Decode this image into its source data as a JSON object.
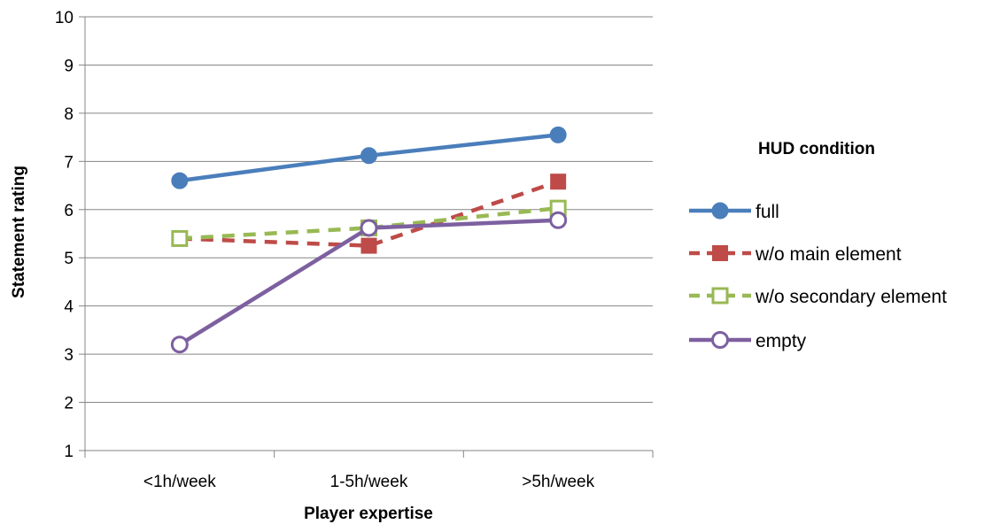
{
  "chart_data": {
    "type": "line",
    "xlabel": "Player expertise",
    "ylabel": "Statement rating",
    "ylim": [
      1,
      10
    ],
    "yticks": [
      "1",
      "2",
      "3",
      "4",
      "5",
      "6",
      "7",
      "8",
      "9",
      "10"
    ],
    "categories": [
      "<1h/week",
      "1-5h/week",
      ">5h/week"
    ],
    "grid": "horizontal",
    "legend": {
      "title": "HUD condition",
      "placement": "right"
    },
    "series": [
      {
        "name": "full",
        "values": [
          6.6,
          7.12,
          7.55
        ],
        "color": "#4a7ebb",
        "dash": "solid",
        "marker": "filled-circle"
      },
      {
        "name": "w/o main element",
        "values": [
          5.4,
          5.25,
          6.58
        ],
        "color": "#be4b48",
        "dash": "dashed",
        "marker": "filled-square"
      },
      {
        "name": "w/o secondary element",
        "values": [
          5.4,
          5.62,
          6.03
        ],
        "color": "#98b954",
        "dash": "dashed",
        "marker": "hollow-square"
      },
      {
        "name": "empty",
        "values": [
          3.2,
          5.62,
          5.78
        ],
        "color": "#7d60a0",
        "dash": "solid",
        "marker": "hollow-circle"
      }
    ]
  }
}
